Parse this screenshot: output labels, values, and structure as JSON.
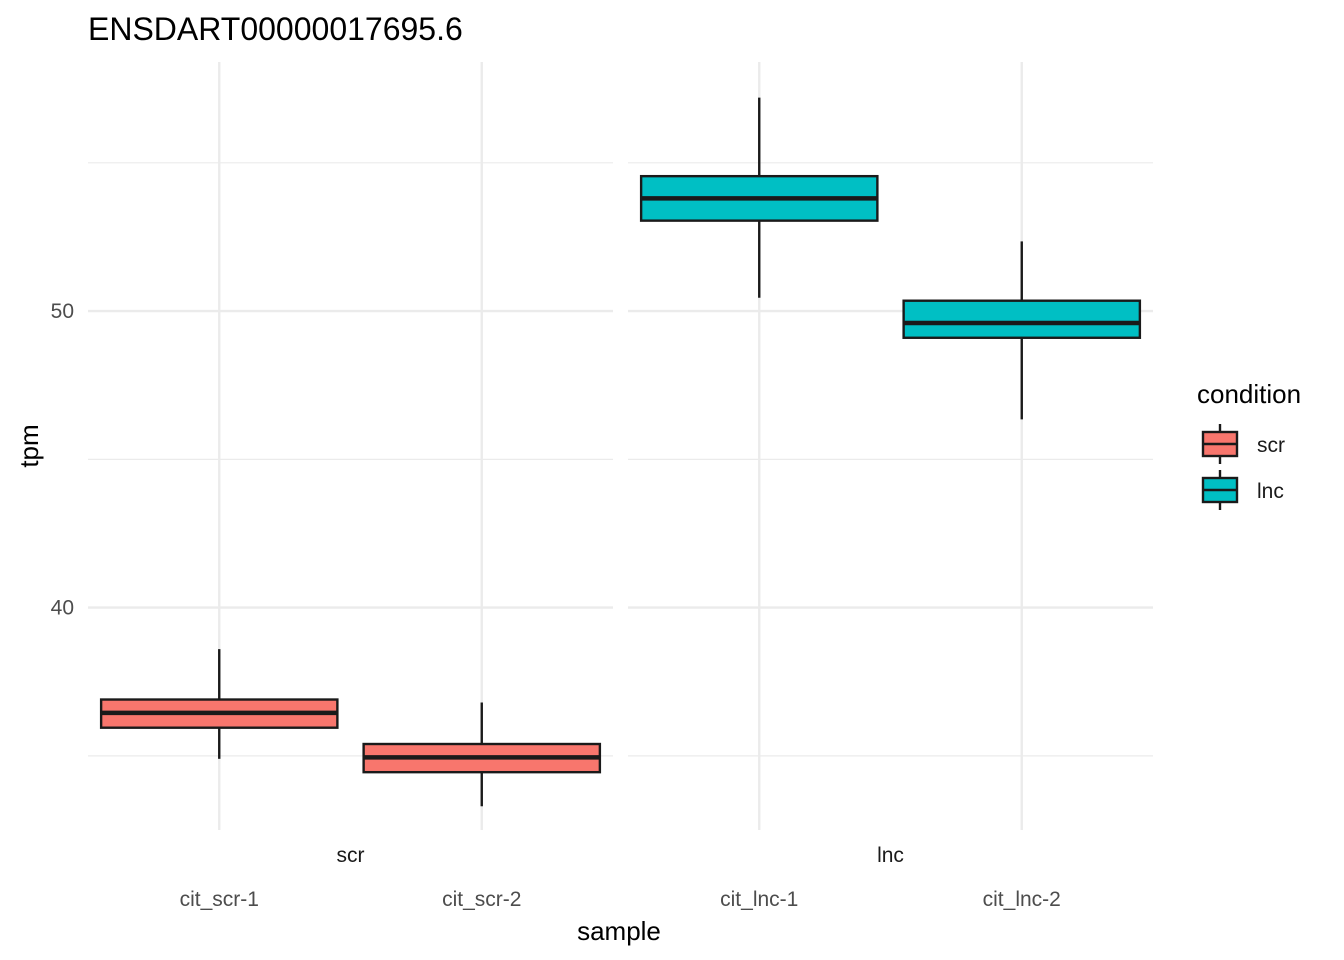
{
  "chart_data": {
    "type": "boxplot",
    "title": "ENSDART00000017695.6",
    "xlabel": "sample",
    "ylabel": "tpm",
    "ylim": [
      32.5,
      58.4
    ],
    "y_ticks": [
      40,
      50
    ],
    "grid": true,
    "legend": {
      "title": "condition",
      "placement": "right",
      "entries": [
        {
          "label": "scr",
          "color": "#F8766D"
        },
        {
          "label": "lnc",
          "color": "#00BFC4"
        }
      ]
    },
    "facets": [
      {
        "label": "scr",
        "categories": [
          "cit_scr-1",
          "cit_scr-2"
        ],
        "boxes": [
          {
            "category": "cit_scr-1",
            "condition": "scr",
            "min": 34.9,
            "q1": 35.95,
            "median": 36.45,
            "q3": 36.9,
            "max": 38.6
          },
          {
            "category": "cit_scr-2",
            "condition": "scr",
            "min": 33.3,
            "q1": 34.45,
            "median": 34.95,
            "q3": 35.4,
            "max": 36.8
          }
        ]
      },
      {
        "label": "lnc",
        "categories": [
          "cit_lnc-1",
          "cit_lnc-2"
        ],
        "boxes": [
          {
            "category": "cit_lnc-1",
            "condition": "lnc",
            "min": 50.45,
            "q1": 53.05,
            "median": 53.8,
            "q3": 54.55,
            "max": 57.2
          },
          {
            "category": "cit_lnc-2",
            "condition": "lnc",
            "min": 46.35,
            "q1": 49.1,
            "median": 49.6,
            "q3": 50.35,
            "max": 52.35
          }
        ]
      }
    ],
    "colors": {
      "scr": "#F8766D",
      "lnc": "#00BFC4"
    }
  }
}
